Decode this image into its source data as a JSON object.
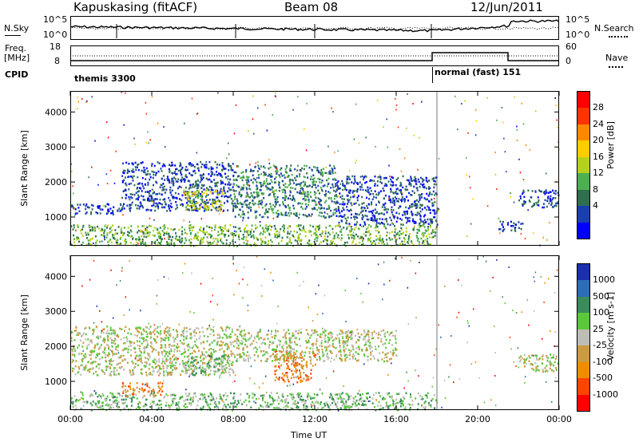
{
  "header": {
    "station": "Kapuskasing (fitACF)",
    "beam": "Beam 08",
    "date": "12/Jun/2011"
  },
  "left_labels": {
    "nsky": "N.Sky",
    "freq_line1": "Freq.",
    "freq_line2": "[MHz]",
    "cpid": "CPID"
  },
  "right_labels": {
    "nsearch": "N.Search",
    "nave": "Nave"
  },
  "noise_axis": {
    "left_ticks": [
      "10^5",
      "10^0"
    ],
    "right_ticks": [
      "10^5",
      "10^0"
    ]
  },
  "freq_axis": {
    "left_ticks": [
      "18",
      "8"
    ],
    "right_ticks": [
      "60",
      "0"
    ]
  },
  "cpid_segments": [
    {
      "label": "themis 3300",
      "start_hour": 0,
      "end_hour": 18
    },
    {
      "label": "normal (fast) 151",
      "start_hour": 18,
      "end_hour": 24
    }
  ],
  "chart_data": [
    {
      "type": "heatmap",
      "quantity": "Power",
      "xlabel": "",
      "ylabel": "Slant Range [km]",
      "xlim": [
        0,
        24
      ],
      "ylim": [
        180,
        4600
      ],
      "y_ticks": [
        1000,
        2000,
        3000,
        4000
      ],
      "colorbar": {
        "label": "Power [dB]",
        "ticks": [
          "4",
          "8",
          "12",
          "16",
          "20",
          "24",
          "28"
        ],
        "colors": [
          "#0000ff",
          "#1a3fb0",
          "#2f6f4f",
          "#4caf50",
          "#b5d11c",
          "#ffcc00",
          "#ff8800",
          "#ff3300",
          "#ff0000"
        ]
      },
      "echo_regions": [
        {
          "t_start": 0.0,
          "t_end": 2.5,
          "r_min": 1100,
          "r_max": 1400,
          "level": 1
        },
        {
          "t_start": 2.5,
          "t_end": 8.0,
          "r_min": 1200,
          "r_max": 2600,
          "level": 1
        },
        {
          "t_start": 5.5,
          "t_end": 7.5,
          "r_min": 1200,
          "r_max": 1800,
          "level": 4
        },
        {
          "t_start": 8.0,
          "t_end": 13.0,
          "r_min": 1000,
          "r_max": 2500,
          "level": 2
        },
        {
          "t_start": 13.0,
          "t_end": 18.0,
          "r_min": 800,
          "r_max": 2200,
          "level": 1
        },
        {
          "t_start": 0.0,
          "t_end": 18.0,
          "r_min": 200,
          "r_max": 800,
          "level": 3
        },
        {
          "t_start": 21.0,
          "t_end": 22.2,
          "r_min": 600,
          "r_max": 900,
          "level": 1
        },
        {
          "t_start": 22.0,
          "t_end": 24.0,
          "r_min": 1300,
          "r_max": 1800,
          "level": 1
        }
      ]
    },
    {
      "type": "heatmap",
      "quantity": "Velocity",
      "xlabel": "Time UT",
      "ylabel": "Slant Range [km]",
      "xlim": [
        0,
        24
      ],
      "ylim": [
        180,
        4600
      ],
      "x_ticks": [
        "00:00",
        "04:00",
        "08:00",
        "12:00",
        "16:00",
        "20:00",
        "00:00"
      ],
      "y_ticks": [
        1000,
        2000,
        3000,
        4000
      ],
      "colorbar": {
        "label": "Velocity [m s-1]",
        "ticks": [
          "1000",
          "500",
          "100",
          "25",
          "-25",
          "-100",
          "-500",
          "-1000"
        ],
        "colors": [
          "#1a2fb0",
          "#2d6cb8",
          "#3a8c5a",
          "#5ac83a",
          "#bdbdb5",
          "#cc9a40",
          "#f08c00",
          "#ff4400",
          "#ff0000"
        ]
      },
      "echo_regions": [
        {
          "t_start": 0.0,
          "t_end": 8.0,
          "r_min": 1200,
          "r_max": 2600,
          "level": 4
        },
        {
          "t_start": 2.5,
          "t_end": 4.5,
          "r_min": 600,
          "r_max": 1000,
          "level": 6
        },
        {
          "t_start": 5.5,
          "t_end": 7.5,
          "r_min": 1200,
          "r_max": 1800,
          "level": 3
        },
        {
          "t_start": 10.0,
          "t_end": 12.0,
          "r_min": 1000,
          "r_max": 1900,
          "level": 6
        },
        {
          "t_start": 8.0,
          "t_end": 16.0,
          "r_min": 1600,
          "r_max": 2500,
          "level": 4
        },
        {
          "t_start": 0.0,
          "t_end": 18.0,
          "r_min": 200,
          "r_max": 700,
          "level": 3
        },
        {
          "t_start": 22.0,
          "t_end": 24.0,
          "r_min": 1300,
          "r_max": 1800,
          "level": 4
        }
      ]
    }
  ]
}
